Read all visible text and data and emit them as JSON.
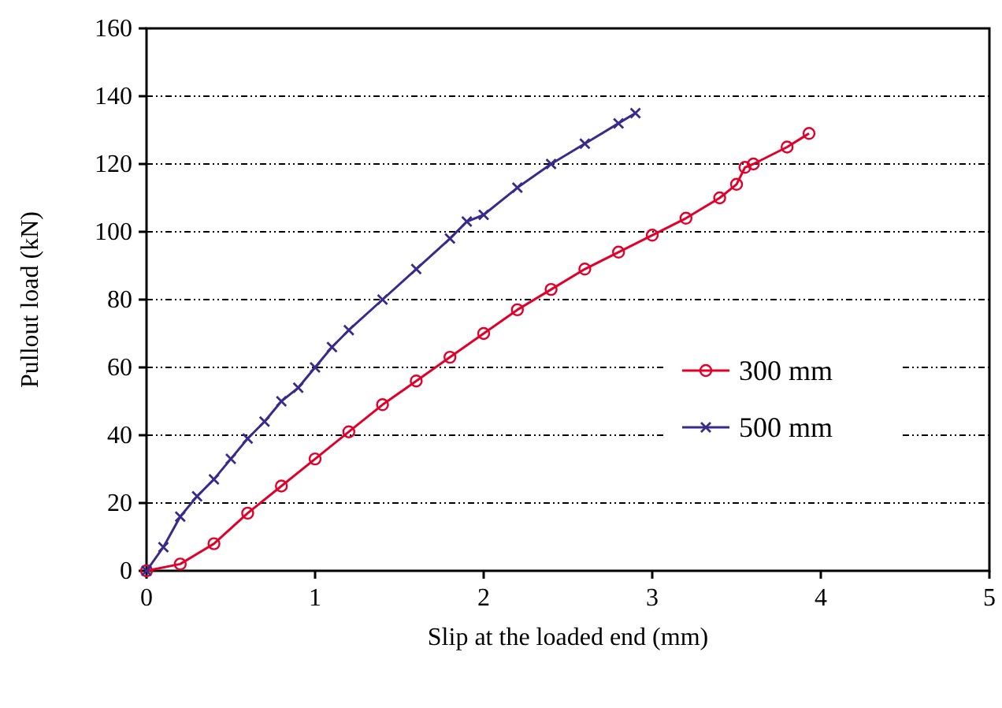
{
  "chart_data": {
    "type": "line",
    "xlabel": "Slip at the loaded end (mm)",
    "ylabel": "Pullout load (kN)",
    "xlim": [
      0,
      5
    ],
    "xticks": [
      0,
      1,
      2,
      3,
      4,
      5
    ],
    "ylim": [
      0,
      160
    ],
    "yticks": [
      0,
      20,
      40,
      60,
      80,
      100,
      120,
      140,
      160
    ],
    "grid": "y",
    "legend": "right",
    "series": [
      {
        "name": "300 mm",
        "color": "#e0002a",
        "marker": "circle",
        "x": [
          0,
          0.2,
          0.4,
          0.6,
          0.8,
          1.0,
          1.2,
          1.4,
          1.6,
          1.8,
          2.0,
          2.2,
          2.4,
          2.6,
          2.8,
          3.0,
          3.2,
          3.4,
          3.5,
          3.55,
          3.6,
          3.8,
          3.93
        ],
        "values": [
          0,
          2,
          8,
          17,
          25,
          33,
          41,
          49,
          56,
          63,
          70,
          77,
          83,
          89,
          94,
          99,
          104,
          110,
          114,
          119,
          120,
          125,
          129
        ]
      },
      {
        "name": "500 mm",
        "color": "#3a2a8c",
        "marker": "cross",
        "x": [
          0,
          0.1,
          0.2,
          0.3,
          0.4,
          0.5,
          0.6,
          0.7,
          0.8,
          0.9,
          1.0,
          1.1,
          1.2,
          1.4,
          1.6,
          1.8,
          1.9,
          2.0,
          2.2,
          2.4,
          2.6,
          2.8,
          2.9
        ],
        "values": [
          0,
          7,
          16,
          22,
          27,
          33,
          39,
          44,
          50,
          54,
          60,
          66,
          71,
          80,
          89,
          98,
          103,
          105,
          113,
          120,
          126,
          132,
          135
        ]
      }
    ]
  }
}
